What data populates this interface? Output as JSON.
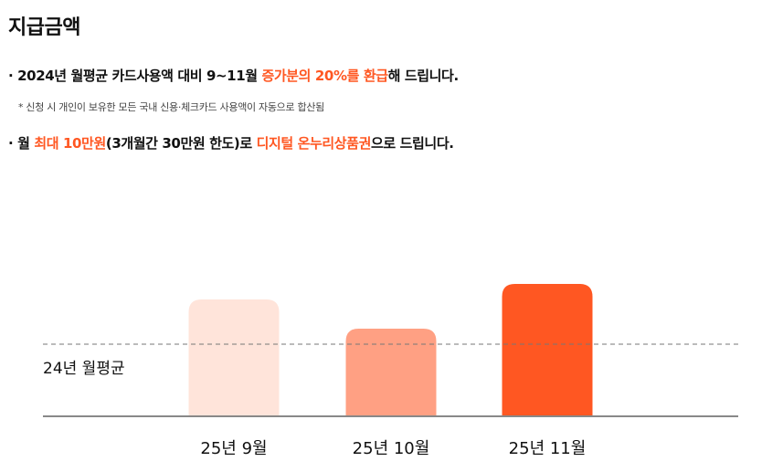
{
  "title": "지급금액",
  "line1": {
    "bullet": "· ",
    "text_before": "2024년 월평균 카드사용액 대비 9~11월 ",
    "highlight": "증가분의 20%를 환급",
    "text_after": "해 드립니다."
  },
  "note": "* 신청 시 개인이 보유한 모든 국내 신용·체크카드 사용액이 자동으로 합산됨",
  "line3": {
    "bullet": "· ",
    "text1": "월 ",
    "highlight1": "최대 10만원",
    "text2": "(3개월간 30만원 한도)로 ",
    "highlight2": "디지털 온누리상품권",
    "text3": "으로 드립니다."
  },
  "colors": {
    "accent": "#ff5722",
    "bar_sep": "#ffe4da",
    "bar_oct": "#ffa083",
    "bar_nov": "#ff5722",
    "baseline": "#888888"
  },
  "chart_data": {
    "type": "bar",
    "categories": [
      "25년 9월",
      "25년 10월",
      "25년 11월"
    ],
    "values": [
      128,
      96,
      145
    ],
    "ylim": [
      0,
      160
    ],
    "reference_line": {
      "label": "24년 월평균",
      "value": 79
    },
    "grid": false,
    "legend": "none"
  }
}
